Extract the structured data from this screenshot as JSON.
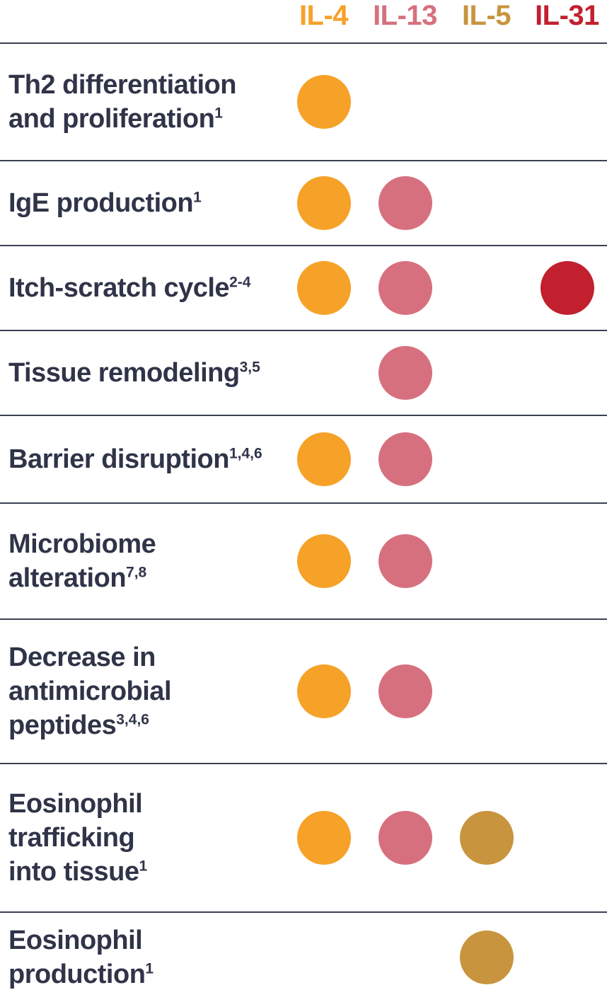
{
  "chart_data": {
    "type": "table",
    "title": "",
    "legend_position": "top",
    "columns": [
      {
        "id": "il4",
        "label": "IL-4",
        "color": "#F6A128"
      },
      {
        "id": "il13",
        "label": "IL-13",
        "color": "#D7707E"
      },
      {
        "id": "il5",
        "label": "IL-5",
        "color": "#C8943E"
      },
      {
        "id": "il31",
        "label": "IL-31",
        "color": "#C2202F"
      }
    ],
    "rows": [
      {
        "label": "Th2 differentiation and proliferation",
        "lines": [
          "Th2 differentiation",
          "and proliferation"
        ],
        "refs": "1",
        "dots": [
          "il4"
        ]
      },
      {
        "label": "IgE production",
        "lines": [
          "IgE production"
        ],
        "refs": "1",
        "dots": [
          "il4",
          "il13"
        ]
      },
      {
        "label": "Itch-scratch cycle",
        "lines": [
          "Itch-scratch cycle"
        ],
        "refs": "2-4",
        "dots": [
          "il4",
          "il13",
          "il31"
        ]
      },
      {
        "label": "Tissue remodeling",
        "lines": [
          "Tissue remodeling"
        ],
        "refs": "3,5",
        "dots": [
          "il13"
        ]
      },
      {
        "label": "Barrier disruption",
        "lines": [
          "Barrier disruption"
        ],
        "refs": "1,4,6",
        "dots": [
          "il4",
          "il13"
        ]
      },
      {
        "label": "Microbiome alteration",
        "lines": [
          "Microbiome",
          "alteration"
        ],
        "refs": "7,8",
        "dots": [
          "il4",
          "il13"
        ]
      },
      {
        "label": "Decrease in antimicrobial peptides",
        "lines": [
          "Decrease in",
          "antimicrobial",
          "peptides"
        ],
        "refs": "3,4,6",
        "dots": [
          "il4",
          "il13"
        ]
      },
      {
        "label": "Eosinophil trafficking into tissue",
        "lines": [
          "Eosinophil",
          "trafficking",
          "into tissue"
        ],
        "refs": "1",
        "dots": [
          "il4",
          "il13",
          "il5"
        ]
      },
      {
        "label": "Eosinophil production",
        "lines": [
          "Eosinophil",
          "production"
        ],
        "refs": "1",
        "dots": [
          "il5"
        ]
      }
    ]
  },
  "colors": {
    "text": "#2F3448",
    "divider": "#3A4153",
    "background": "#FFFFFF"
  }
}
